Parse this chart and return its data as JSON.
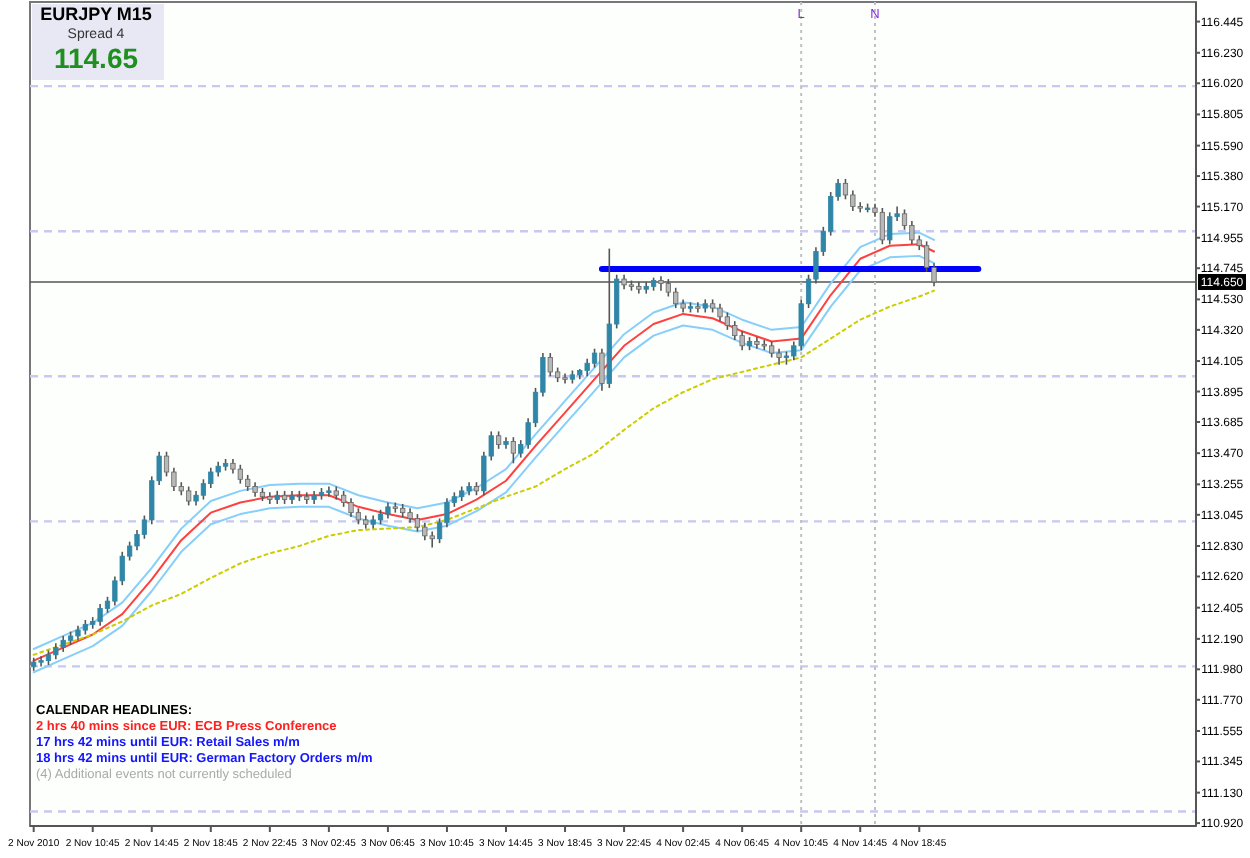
{
  "chart_data": {
    "type": "candlestick",
    "colors": [
      "#2f86a6",
      "#2f86a6",
      "#2f86a6",
      "#2f86a6",
      "#2f86a6",
      "#2f86a6",
      "#2f86a6",
      "#2f86a6",
      "#2f86a6",
      "#2f86a6",
      "#2f86a6",
      "#2f86a6",
      "#2f86a6",
      "#2f86a6",
      "#2f86a6",
      "#2f86a6",
      "#2f86a6",
      "#2f86a6",
      "#b8b8b8",
      "#b8b8b8",
      "#b8b8b8",
      "#b8b8b8",
      "#2f86a6",
      "#2f86a6",
      "#2f86a6",
      "#2f86a6",
      "#2f86a6",
      "#b8b8b8",
      "#b8b8b8",
      "#b8b8b8",
      "#b8b8b8",
      "#b8b8b8",
      "#b8b8b8",
      "#2f86a6",
      "#b8b8b8",
      "#2f86a6",
      "#2f86a6",
      "#b8b8b8",
      "#2f86a6",
      "#2f86a6",
      "#2f86a6",
      "#b8b8b8",
      "#b8b8b8",
      "#b8b8b8",
      "#b8b8b8",
      "#b8b8b8",
      "#2f86a6",
      "#2f86a6",
      "#2f86a6",
      "#b8b8b8",
      "#b8b8b8",
      "#b8b8b8",
      "#b8b8b8",
      "#b8b8b8",
      "#b8b8b8",
      "#2f86a6",
      "#2f86a6",
      "#2f86a6",
      "#2f86a6",
      "#2f86a6",
      "#b8b8b8",
      "#2f86a6",
      "#2f86a6",
      "#b8b8b8",
      "#2f86a6",
      "#b8b8b8",
      "#2f86a6",
      "#2f86a6",
      "#2f86a6",
      "#2f86a6",
      "#b8b8b8",
      "#b8b8b8",
      "#b8b8b8",
      "#2f86a6",
      "#2f86a6",
      "#2f86a6",
      "#2f86a6",
      "#b8b8b8",
      "#2f86a6",
      "#2f86a6",
      "#b8b8b8",
      "#b8b8b8",
      "#b8b8b8",
      "#2f86a6",
      "#2f86a6",
      "#b8b8b8",
      "#b8b8b8",
      "#b8b8b8",
      "#b8b8b8",
      "#2f86a6",
      "#b8b8b8",
      "#2f86a6",
      "#b8b8b8",
      "#b8b8b8",
      "#b8b8b8",
      "#b8b8b8",
      "#b8b8b8",
      "#2f86a6",
      "#b8b8b8",
      "#b8b8b8",
      "#b8b8b8",
      "#b8b8b8",
      "#2f86a6",
      "#2f86a6",
      "#2f86a6",
      "#2f86a6",
      "#2f86a6",
      "#2f86a6",
      "#2f86a6",
      "#2f86a6",
      "#b8b8b8",
      "#b8b8b8",
      "#b8b8b8",
      "#2f86a6",
      "#b8b8b8",
      "#b8b8b8",
      "#2f86a6",
      "#2f86a6",
      "#b8b8b8",
      "#b8b8b8",
      "#b8b8b8",
      "#b8b8b8",
      "#b8b8b8"
    ],
    "x": [
      "2010-11-02T06:45",
      "2010-11-02T07:15",
      "2010-11-02T07:45",
      "2010-11-02T08:15",
      "2010-11-02T08:45",
      "2010-11-02T09:15",
      "2010-11-02T09:45",
      "2010-11-02T10:15",
      "2010-11-02T10:45",
      "2010-11-02T11:15",
      "2010-11-02T11:45",
      "2010-11-02T12:15",
      "2010-11-02T12:45",
      "2010-11-02T13:15",
      "2010-11-02T13:45",
      "2010-11-02T14:15",
      "2010-11-02T14:45",
      "2010-11-02T15:15",
      "2010-11-02T15:45",
      "2010-11-02T16:15",
      "2010-11-02T16:45",
      "2010-11-02T17:15",
      "2010-11-02T17:45",
      "2010-11-02T18:15",
      "2010-11-02T18:45",
      "2010-11-02T19:15",
      "2010-11-02T19:45",
      "2010-11-02T20:15",
      "2010-11-02T20:45",
      "2010-11-02T21:15",
      "2010-11-02T21:45",
      "2010-11-02T22:15",
      "2010-11-02T22:45",
      "2010-11-02T23:15",
      "2010-11-02T23:45",
      "2010-11-03T00:15",
      "2010-11-03T00:45",
      "2010-11-03T01:15",
      "2010-11-03T01:45",
      "2010-11-03T02:15",
      "2010-11-03T02:45",
      "2010-11-03T03:15",
      "2010-11-03T03:45",
      "2010-11-03T04:15",
      "2010-11-03T04:45",
      "2010-11-03T05:15",
      "2010-11-03T05:45",
      "2010-11-03T06:15",
      "2010-11-03T06:45",
      "2010-11-03T07:15",
      "2010-11-03T07:45",
      "2010-11-03T08:15",
      "2010-11-03T08:45",
      "2010-11-03T09:15",
      "2010-11-03T09:45",
      "2010-11-03T10:15",
      "2010-11-03T10:45",
      "2010-11-03T11:15",
      "2010-11-03T11:45",
      "2010-11-03T12:15",
      "2010-11-03T12:45",
      "2010-11-03T13:15",
      "2010-11-03T13:45",
      "2010-11-03T14:15",
      "2010-11-03T14:45",
      "2010-11-03T15:15",
      "2010-11-03T15:45",
      "2010-11-03T16:15",
      "2010-11-03T16:45",
      "2010-11-03T17:15",
      "2010-11-03T17:45",
      "2010-11-03T18:15",
      "2010-11-03T18:45",
      "2010-11-03T19:15",
      "2010-11-03T19:45",
      "2010-11-03T20:15",
      "2010-11-03T20:45",
      "2010-11-03T21:15",
      "2010-11-03T21:45",
      "2010-11-03T22:15",
      "2010-11-03T22:45",
      "2010-11-03T23:15",
      "2010-11-03T23:45",
      "2010-11-04T00:15",
      "2010-11-04T00:45",
      "2010-11-04T01:15",
      "2010-11-04T01:45",
      "2010-11-04T02:15",
      "2010-11-04T02:45",
      "2010-11-04T03:15",
      "2010-11-04T03:45",
      "2010-11-04T04:15",
      "2010-11-04T04:45",
      "2010-11-04T05:15",
      "2010-11-04T05:45",
      "2010-11-04T06:15",
      "2010-11-04T06:45",
      "2010-11-04T07:15",
      "2010-11-04T07:45",
      "2010-11-04T08:15",
      "2010-11-04T08:45",
      "2010-11-04T09:15",
      "2010-11-04T09:45",
      "2010-11-04T10:15",
      "2010-11-04T10:45",
      "2010-11-04T11:15",
      "2010-11-04T11:45",
      "2010-11-04T12:15",
      "2010-11-04T12:45",
      "2010-11-04T13:15",
      "2010-11-04T13:45",
      "2010-11-04T14:15",
      "2010-11-04T14:45",
      "2010-11-04T15:15",
      "2010-11-04T15:45",
      "2010-11-04T16:15",
      "2010-11-04T16:45",
      "2010-11-04T17:15",
      "2010-11-04T17:45",
      "2010-11-04T18:15",
      "2010-11-04T18:45",
      "2010-11-04T19:15",
      "2010-11-04T19:45"
    ],
    "ohlc": [
      [
        112.0,
        112.06,
        111.97,
        112.03
      ],
      [
        112.03,
        112.07,
        112.0,
        112.04
      ],
      [
        112.04,
        112.11,
        112.01,
        112.08
      ],
      [
        112.08,
        112.16,
        112.05,
        112.13
      ],
      [
        112.13,
        112.21,
        112.1,
        112.18
      ],
      [
        112.18,
        112.24,
        112.15,
        112.21
      ],
      [
        112.21,
        112.28,
        112.18,
        112.25
      ],
      [
        112.25,
        112.32,
        112.22,
        112.29
      ],
      [
        112.29,
        112.34,
        112.26,
        112.31
      ],
      [
        112.31,
        112.43,
        112.28,
        112.4
      ],
      [
        112.4,
        112.48,
        112.37,
        112.45
      ],
      [
        112.45,
        112.62,
        112.42,
        112.59
      ],
      [
        112.59,
        112.79,
        112.56,
        112.76
      ],
      [
        112.76,
        112.86,
        112.73,
        112.83
      ],
      [
        112.83,
        112.94,
        112.8,
        112.91
      ],
      [
        112.91,
        113.04,
        112.88,
        113.01
      ],
      [
        113.01,
        113.31,
        112.98,
        113.28
      ],
      [
        113.28,
        113.48,
        113.25,
        113.45
      ],
      [
        113.45,
        113.48,
        113.31,
        113.34
      ],
      [
        113.34,
        113.37,
        113.21,
        113.24
      ],
      [
        113.24,
        113.27,
        113.18,
        113.21
      ],
      [
        113.21,
        113.24,
        113.11,
        113.14
      ],
      [
        113.14,
        113.21,
        113.11,
        113.18
      ],
      [
        113.18,
        113.29,
        113.15,
        113.26
      ],
      [
        113.26,
        113.37,
        113.23,
        113.34
      ],
      [
        113.34,
        113.41,
        113.31,
        113.38
      ],
      [
        113.38,
        113.43,
        113.35,
        113.4
      ],
      [
        113.4,
        113.43,
        113.33,
        113.36
      ],
      [
        113.36,
        113.39,
        113.26,
        113.29
      ],
      [
        113.29,
        113.32,
        113.21,
        113.24
      ],
      [
        113.24,
        113.27,
        113.17,
        113.2
      ],
      [
        113.2,
        113.23,
        113.14,
        113.17
      ],
      [
        113.17,
        113.2,
        113.12,
        113.15
      ],
      [
        113.15,
        113.21,
        113.12,
        113.18
      ],
      [
        113.18,
        113.21,
        113.12,
        113.15
      ],
      [
        113.15,
        113.21,
        113.12,
        113.18
      ],
      [
        113.18,
        113.21,
        113.14,
        113.17
      ],
      [
        113.17,
        113.2,
        113.12,
        113.15
      ],
      [
        113.15,
        113.21,
        113.12,
        113.18
      ],
      [
        113.18,
        113.23,
        113.15,
        113.2
      ],
      [
        113.2,
        113.24,
        113.17,
        113.21
      ],
      [
        113.21,
        113.24,
        113.15,
        113.18
      ],
      [
        113.18,
        113.21,
        113.1,
        113.13
      ],
      [
        113.13,
        113.16,
        113.03,
        113.06
      ],
      [
        113.06,
        113.09,
        112.98,
        113.01
      ],
      [
        113.01,
        113.04,
        112.95,
        112.98
      ],
      [
        112.98,
        113.04,
        112.95,
        113.01
      ],
      [
        113.01,
        113.08,
        112.98,
        113.05
      ],
      [
        113.05,
        113.13,
        113.02,
        113.1
      ],
      [
        113.1,
        113.13,
        113.06,
        113.09
      ],
      [
        113.09,
        113.12,
        113.03,
        113.06
      ],
      [
        113.06,
        113.09,
        112.99,
        113.02
      ],
      [
        113.02,
        113.05,
        112.93,
        112.96
      ],
      [
        112.96,
        112.99,
        112.87,
        112.9
      ],
      [
        112.9,
        112.93,
        112.82,
        112.88
      ],
      [
        112.88,
        113.02,
        112.85,
        112.99
      ],
      [
        112.99,
        113.16,
        112.96,
        113.13
      ],
      [
        113.13,
        113.2,
        113.1,
        113.17
      ],
      [
        113.17,
        113.24,
        113.14,
        113.21
      ],
      [
        113.21,
        113.27,
        113.18,
        113.24
      ],
      [
        113.24,
        113.27,
        113.18,
        113.21
      ],
      [
        113.21,
        113.48,
        113.18,
        113.45
      ],
      [
        113.45,
        113.62,
        113.42,
        113.59
      ],
      [
        113.59,
        113.62,
        113.5,
        113.53
      ],
      [
        113.53,
        113.58,
        113.5,
        113.55
      ],
      [
        113.55,
        113.58,
        113.4,
        113.47
      ],
      [
        113.47,
        113.56,
        113.44,
        113.53
      ],
      [
        113.53,
        113.71,
        113.5,
        113.68
      ],
      [
        113.68,
        113.92,
        113.65,
        113.89
      ],
      [
        113.89,
        114.16,
        113.86,
        114.13
      ],
      [
        114.13,
        114.16,
        114.0,
        114.03
      ],
      [
        114.03,
        114.06,
        113.96,
        113.99
      ],
      [
        113.99,
        114.02,
        113.95,
        113.98
      ],
      [
        113.98,
        114.04,
        113.95,
        114.01
      ],
      [
        114.01,
        114.05,
        113.98,
        114.04
      ],
      [
        114.04,
        114.12,
        114.0,
        114.09
      ],
      [
        114.09,
        114.19,
        114.06,
        114.16
      ],
      [
        114.16,
        114.19,
        113.9,
        113.95
      ],
      [
        113.95,
        114.88,
        113.92,
        114.36
      ],
      [
        114.36,
        114.7,
        114.33,
        114.67
      ],
      [
        114.67,
        114.7,
        114.6,
        114.63
      ],
      [
        114.63,
        114.66,
        114.59,
        114.62
      ],
      [
        114.62,
        114.65,
        114.57,
        114.6
      ],
      [
        114.6,
        114.65,
        114.57,
        114.62
      ],
      [
        114.62,
        114.68,
        114.59,
        114.66
      ],
      [
        114.66,
        114.69,
        114.59,
        114.64
      ],
      [
        114.64,
        114.67,
        114.55,
        114.58
      ],
      [
        114.58,
        114.61,
        114.47,
        114.5
      ],
      [
        114.5,
        114.53,
        114.44,
        114.47
      ],
      [
        114.47,
        114.51,
        114.44,
        114.48
      ],
      [
        114.48,
        114.51,
        114.44,
        114.47
      ],
      [
        114.47,
        114.53,
        114.44,
        114.5
      ],
      [
        114.5,
        114.53,
        114.44,
        114.47
      ],
      [
        114.47,
        114.5,
        114.38,
        114.41
      ],
      [
        114.41,
        114.44,
        114.32,
        114.35
      ],
      [
        114.35,
        114.38,
        114.25,
        114.28
      ],
      [
        114.28,
        114.31,
        114.18,
        114.21
      ],
      [
        114.21,
        114.27,
        114.18,
        114.24
      ],
      [
        114.24,
        114.27,
        114.19,
        114.22
      ],
      [
        114.22,
        114.25,
        114.18,
        114.21
      ],
      [
        114.21,
        114.24,
        114.13,
        114.16
      ],
      [
        114.16,
        114.19,
        114.08,
        114.13
      ],
      [
        114.13,
        114.17,
        114.08,
        114.14
      ],
      [
        114.14,
        114.24,
        114.11,
        114.21
      ],
      [
        114.21,
        114.53,
        114.18,
        114.5
      ],
      [
        114.5,
        114.7,
        114.47,
        114.67
      ],
      [
        114.67,
        114.89,
        114.64,
        114.86
      ],
      [
        114.86,
        115.03,
        114.83,
        115.0
      ],
      [
        115.0,
        115.27,
        114.97,
        115.24
      ],
      [
        115.24,
        115.36,
        115.21,
        115.33
      ],
      [
        115.33,
        115.36,
        115.22,
        115.25
      ],
      [
        115.25,
        115.28,
        115.14,
        115.17
      ],
      [
        115.17,
        115.2,
        115.13,
        115.16
      ],
      [
        115.16,
        115.19,
        115.13,
        115.16
      ],
      [
        115.16,
        115.19,
        115.1,
        115.13
      ],
      [
        115.13,
        115.16,
        114.91,
        114.94
      ],
      [
        114.94,
        115.13,
        114.91,
        115.1
      ],
      [
        115.1,
        115.17,
        115.07,
        115.12
      ],
      [
        115.12,
        115.15,
        115.01,
        115.04
      ],
      [
        115.04,
        115.07,
        114.91,
        114.94
      ],
      [
        114.94,
        114.97,
        114.87,
        114.9
      ],
      [
        114.9,
        114.93,
        114.72,
        114.75
      ],
      [
        114.75,
        114.78,
        114.62,
        114.65
      ]
    ],
    "series": [
      {
        "type": "line",
        "color": "#87cefa",
        "line_style": "solid",
        "x": [
          "2010-11-02T06:45",
          "2010-11-02T08:45",
          "2010-11-02T10:45",
          "2010-11-02T12:45",
          "2010-11-02T14:45",
          "2010-11-02T16:45",
          "2010-11-02T18:45",
          "2010-11-02T20:45",
          "2010-11-02T22:45",
          "2010-11-03T00:45",
          "2010-11-03T02:45",
          "2010-11-03T04:45",
          "2010-11-03T06:45",
          "2010-11-03T08:45",
          "2010-11-03T10:45",
          "2010-11-03T12:45",
          "2010-11-03T14:45",
          "2010-11-03T16:45",
          "2010-11-03T18:45",
          "2010-11-03T20:45",
          "2010-11-03T22:45",
          "2010-11-04T00:45",
          "2010-11-04T02:45",
          "2010-11-04T04:45",
          "2010-11-04T06:45",
          "2010-11-04T08:45",
          "2010-11-04T10:45",
          "2010-11-04T12:45",
          "2010-11-04T14:45",
          "2010-11-04T16:45",
          "2010-11-04T18:45",
          "2010-11-04T19:45"
        ],
        "values": [
          112.12,
          112.21,
          112.3,
          112.44,
          112.68,
          112.95,
          113.14,
          113.21,
          113.25,
          113.26,
          113.26,
          113.18,
          113.13,
          113.09,
          113.13,
          113.23,
          113.36,
          113.6,
          113.83,
          114.06,
          114.29,
          114.44,
          114.51,
          114.48,
          114.39,
          114.32,
          114.34,
          114.64,
          114.89,
          114.98,
          114.99,
          114.94
        ]
      },
      {
        "type": "line",
        "color": "#ff4040",
        "line_style": "solid",
        "x": [
          "2010-11-02T06:45",
          "2010-11-02T08:45",
          "2010-11-02T10:45",
          "2010-11-02T12:45",
          "2010-11-02T14:45",
          "2010-11-02T16:45",
          "2010-11-02T18:45",
          "2010-11-02T20:45",
          "2010-11-02T22:45",
          "2010-11-03T00:45",
          "2010-11-03T02:45",
          "2010-11-03T04:45",
          "2010-11-03T06:45",
          "2010-11-03T08:45",
          "2010-11-03T10:45",
          "2010-11-03T12:45",
          "2010-11-03T14:45",
          "2010-11-03T16:45",
          "2010-11-03T18:45",
          "2010-11-03T20:45",
          "2010-11-03T22:45",
          "2010-11-04T00:45",
          "2010-11-04T02:45",
          "2010-11-04T04:45",
          "2010-11-04T06:45",
          "2010-11-04T08:45",
          "2010-11-04T10:45",
          "2010-11-04T12:45",
          "2010-11-04T14:45",
          "2010-11-04T16:45",
          "2010-11-04T18:45",
          "2010-11-04T19:45"
        ],
        "values": [
          112.04,
          112.13,
          112.22,
          112.36,
          112.6,
          112.87,
          113.06,
          113.13,
          113.17,
          113.18,
          113.18,
          113.1,
          113.05,
          113.01,
          113.05,
          113.15,
          113.28,
          113.52,
          113.75,
          113.98,
          114.21,
          114.36,
          114.43,
          114.4,
          114.31,
          114.24,
          114.26,
          114.56,
          114.81,
          114.9,
          114.91,
          114.86
        ]
      },
      {
        "type": "line",
        "color": "#87cefa",
        "line_style": "solid",
        "x": [
          "2010-11-02T06:45",
          "2010-11-02T08:45",
          "2010-11-02T10:45",
          "2010-11-02T12:45",
          "2010-11-02T14:45",
          "2010-11-02T16:45",
          "2010-11-02T18:45",
          "2010-11-02T20:45",
          "2010-11-02T22:45",
          "2010-11-03T00:45",
          "2010-11-03T02:45",
          "2010-11-03T04:45",
          "2010-11-03T06:45",
          "2010-11-03T08:45",
          "2010-11-03T10:45",
          "2010-11-03T12:45",
          "2010-11-03T14:45",
          "2010-11-03T16:45",
          "2010-11-03T18:45",
          "2010-11-03T20:45",
          "2010-11-03T22:45",
          "2010-11-04T00:45",
          "2010-11-04T02:45",
          "2010-11-04T04:45",
          "2010-11-04T06:45",
          "2010-11-04T08:45",
          "2010-11-04T10:45",
          "2010-11-04T12:45",
          "2010-11-04T14:45",
          "2010-11-04T16:45",
          "2010-11-04T18:45",
          "2010-11-04T19:45"
        ],
        "values": [
          111.96,
          112.05,
          112.14,
          112.28,
          112.52,
          112.79,
          112.98,
          113.05,
          113.09,
          113.1,
          113.1,
          113.02,
          112.97,
          112.93,
          112.97,
          113.07,
          113.2,
          113.44,
          113.67,
          113.9,
          114.13,
          114.28,
          114.35,
          114.32,
          114.23,
          114.16,
          114.18,
          114.48,
          114.73,
          114.82,
          114.83,
          114.78
        ]
      },
      {
        "type": "line",
        "color": "#cccc00",
        "line_style": "dotted",
        "x": [
          "2010-11-02T06:45",
          "2010-11-02T08:45",
          "2010-11-02T10:45",
          "2010-11-02T12:45",
          "2010-11-02T14:45",
          "2010-11-02T16:45",
          "2010-11-02T18:45",
          "2010-11-02T20:45",
          "2010-11-02T22:45",
          "2010-11-03T00:45",
          "2010-11-03T02:45",
          "2010-11-03T04:45",
          "2010-11-03T06:45",
          "2010-11-03T08:45",
          "2010-11-03T10:45",
          "2010-11-03T12:45",
          "2010-11-03T14:45",
          "2010-11-03T16:45",
          "2010-11-03T18:45",
          "2010-11-03T20:45",
          "2010-11-03T22:45",
          "2010-11-04T00:45",
          "2010-11-04T02:45",
          "2010-11-04T04:45",
          "2010-11-04T06:45",
          "2010-11-04T08:45",
          "2010-11-04T10:45",
          "2010-11-04T12:45",
          "2010-11-04T14:45",
          "2010-11-04T16:45",
          "2010-11-04T18:45",
          "2010-11-04T19:45"
        ],
        "values": [
          112.08,
          112.15,
          112.22,
          112.31,
          112.42,
          112.5,
          112.61,
          112.71,
          112.78,
          112.83,
          112.9,
          112.94,
          112.95,
          112.96,
          113.01,
          113.09,
          113.17,
          113.24,
          113.36,
          113.47,
          113.63,
          113.78,
          113.89,
          113.98,
          114.03,
          114.08,
          114.13,
          114.26,
          114.39,
          114.48,
          114.55,
          114.59
        ]
      },
      {
        "type": "line",
        "color": "#0000ff",
        "line_style": "solid",
        "x": [
          "2010-11-03T21:15",
          "2010-11-04T22:45"
        ],
        "values": [
          114.74,
          114.74
        ]
      }
    ],
    "xlim": [
      "2010-11-02T06:30",
      "2010-11-05T13:30"
    ],
    "xticks": [
      {
        "value": "2010-11-02T06:45",
        "label": "2 Nov 2010"
      },
      {
        "value": "2010-11-02T10:45",
        "label": "2 Nov 10:45"
      },
      {
        "value": "2010-11-02T14:45",
        "label": "2 Nov 14:45"
      },
      {
        "value": "2010-11-02T18:45",
        "label": "2 Nov 18:45"
      },
      {
        "value": "2010-11-02T22:45",
        "label": "2 Nov 22:45"
      },
      {
        "value": "2010-11-03T02:45",
        "label": "3 Nov 02:45"
      },
      {
        "value": "2010-11-03T06:45",
        "label": "3 Nov 06:45"
      },
      {
        "value": "2010-11-03T10:45",
        "label": "3 Nov 10:45"
      },
      {
        "value": "2010-11-03T14:45",
        "label": "3 Nov 14:45"
      },
      {
        "value": "2010-11-03T18:45",
        "label": "3 Nov 18:45"
      },
      {
        "value": "2010-11-03T22:45",
        "label": "3 Nov 22:45"
      },
      {
        "value": "2010-11-04T02:45",
        "label": "4 Nov 02:45"
      },
      {
        "value": "2010-11-04T06:45",
        "label": "4 Nov 06:45"
      },
      {
        "value": "2010-11-04T10:45",
        "label": "4 Nov 10:45"
      },
      {
        "value": "2010-11-04T14:45",
        "label": "4 Nov 14:45"
      },
      {
        "value": "2010-11-04T18:45",
        "label": "4 Nov 18:45"
      }
    ],
    "ylim": [
      110.9,
      116.58
    ],
    "yticks": [
      116.445,
      {
        "value": 116.23,
        "label": "116.230"
      },
      {
        "value": 116.02,
        "label": "116.020"
      },
      115.805,
      {
        "value": 115.59,
        "label": "115.590"
      },
      {
        "value": 115.38,
        "label": "115.380"
      },
      {
        "value": 115.17,
        "label": "115.170"
      },
      114.955,
      114.745,
      {
        "value": 114.53,
        "label": "114.530"
      },
      {
        "value": 114.32,
        "label": "114.320"
      },
      114.105,
      113.895,
      113.685,
      {
        "value": 113.47,
        "label": "113.470"
      },
      113.255,
      113.045,
      {
        "value": 112.83,
        "label": "112.830"
      },
      {
        "value": 112.62,
        "label": "112.620"
      },
      112.405,
      {
        "value": 112.19,
        "label": "112.190"
      },
      {
        "value": 111.98,
        "label": "111.980"
      },
      {
        "value": 111.77,
        "label": "111.770"
      },
      111.555,
      111.345,
      {
        "value": 111.13,
        "label": "111.130"
      },
      {
        "value": 110.92,
        "label": "110.920"
      }
    ],
    "ref_lines": [
      {
        "axis": "y",
        "value": 116,
        "color": "#c8c8f0",
        "line_style": "dashed"
      },
      {
        "axis": "y",
        "value": 115,
        "color": "#c8c8f0",
        "line_style": "dashed"
      },
      {
        "axis": "y",
        "value": 114,
        "color": "#c8c8f0",
        "line_style": "dashed"
      },
      {
        "axis": "y",
        "value": 113,
        "color": "#c8c8f0",
        "line_style": "dashed"
      },
      {
        "axis": "y",
        "value": 112,
        "color": "#c8c8f0",
        "line_style": "dashed"
      },
      {
        "axis": "y",
        "value": 111,
        "color": "#c8c8f0",
        "line_style": "dashed"
      },
      {
        "axis": "y",
        "value": 114.65,
        "label": "114.650",
        "color": "#555555",
        "line_style": "solid"
      },
      {
        "axis": "x",
        "value": "2010-11-04T10:45",
        "label": "L",
        "color": "#c0c0c0",
        "line_style": "dotted"
      },
      {
        "axis": "x",
        "value": "2010-11-04T15:45",
        "label": "N",
        "color": "#c0c0c0",
        "line_style": "dotted"
      }
    ],
    "annotations": [
      "EURJPY  M15",
      "Spread  4",
      "114.65",
      "CALENDAR  HEADLINES:",
      "2 hrs 40 mins since EUR: ECB Press Conference",
      "17 hrs 42 mins until EUR: Retail Sales m/m",
      "18 hrs 42 mins until EUR: German Factory Orders m/m",
      "(4)  Additional events not currently scheduled"
    ],
    "grid": false
  }
}
